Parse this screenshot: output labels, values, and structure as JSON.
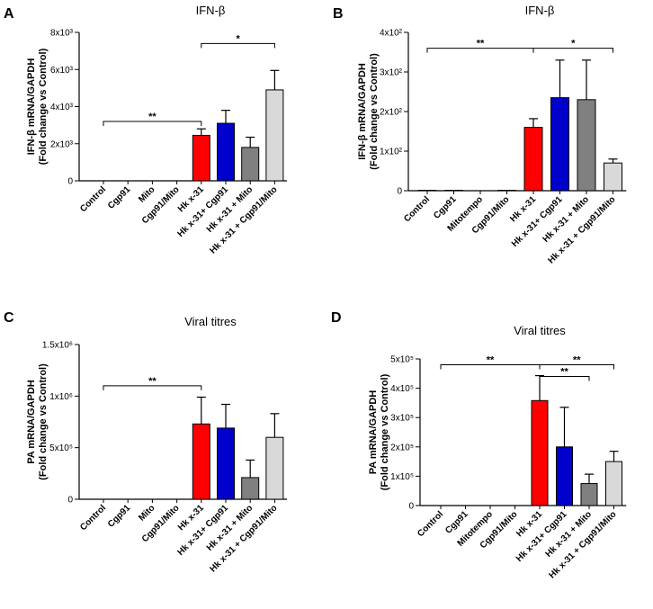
{
  "chart_data": [
    {
      "panel": "A",
      "type": "bar",
      "title": "IFN-β",
      "ylabel_line1": "IFN-β mRNA/GAPDH",
      "ylabel_line2": "(Fold change vs Control)",
      "ylim": [
        0,
        8000
      ],
      "ytick_values": [
        0,
        2000,
        4000,
        6000,
        8000
      ],
      "ytick_labels": [
        "0",
        "2x10³",
        "4x10³",
        "6x10³",
        "8x10³"
      ],
      "categories": [
        "Control",
        "Cgp91",
        "Mito",
        "Cgp91/Mito",
        "Hk x-31",
        "Hk x-31+ Cgp91",
        "Hk x-31 + Mito",
        "Hk x-31 + Cgp91/Mito"
      ],
      "values": [
        0,
        0,
        0,
        0,
        2450,
        3100,
        1800,
        4900
      ],
      "errors": [
        0,
        0,
        0,
        0,
        350,
        700,
        550,
        1050
      ],
      "colors": [
        "#ffffff",
        "#ffffff",
        "#ffffff",
        "#ffffff",
        "#ff0000",
        "#0000cc",
        "#808080",
        "#d9d9d9"
      ],
      "significance": [
        {
          "from": 0,
          "to": 4,
          "label": "**",
          "level": 3200
        },
        {
          "from": 4,
          "to": 7,
          "label": "*",
          "level": 7400
        }
      ]
    },
    {
      "panel": "B",
      "type": "bar",
      "title": "IFN-β",
      "ylabel_line1": "IFN-β mRNA/GAPDH",
      "ylabel_line2": "(Fold change vs Control)",
      "ylim": [
        0,
        400
      ],
      "ytick_values": [
        0,
        100,
        200,
        300,
        400
      ],
      "ytick_labels": [
        "0",
        "1x10²",
        "2x10²",
        "3x10²",
        "4x10²"
      ],
      "categories": [
        "Control",
        "Cgp91",
        "Mitotempo",
        "Cgp91/Mito",
        "Hk x-31",
        "Hk x-31+ Cgp91",
        "Hk x-31 + Mito",
        "Hk x-31 + Cgp91/Mito"
      ],
      "values": [
        1,
        1,
        0,
        1,
        160,
        235,
        230,
        70
      ],
      "errors": [
        0,
        0,
        0,
        0,
        22,
        95,
        100,
        10
      ],
      "colors": [
        "#ffffff",
        "#ffffff",
        "#ffffff",
        "#ffffff",
        "#ff0000",
        "#0000cc",
        "#808080",
        "#d9d9d9"
      ],
      "significance": [
        {
          "from": 0,
          "to": 4,
          "label": "**",
          "level": 360
        },
        {
          "from": 4,
          "to": 7,
          "label": "*",
          "level": 360
        }
      ]
    },
    {
      "panel": "C",
      "type": "bar",
      "title": "Viral titres",
      "ylabel_line1": "PA mRNA/GAPDH",
      "ylabel_line2": "(Fold change vs Control)",
      "ylim": [
        0,
        1500000
      ],
      "ytick_values": [
        0,
        500000,
        1000000,
        1500000
      ],
      "ytick_labels": [
        "0",
        "5x10⁵",
        "1x10⁶",
        "1.5x10⁶"
      ],
      "categories": [
        "Control",
        "Cgp91",
        "Mito",
        "Cgp91/Mito",
        "Hk x-31",
        "Hk x-31+ Cgp91",
        "Hk x-31 + Mito",
        "Hk x-31 + Cgp91/Mito"
      ],
      "values": [
        0,
        0,
        0,
        0,
        730000,
        690000,
        210000,
        600000
      ],
      "errors": [
        0,
        0,
        0,
        0,
        260000,
        230000,
        170000,
        230000
      ],
      "colors": [
        "#ffffff",
        "#ffffff",
        "#ffffff",
        "#ffffff",
        "#ff0000",
        "#0000cc",
        "#808080",
        "#d9d9d9"
      ],
      "significance": [
        {
          "from": 0,
          "to": 4,
          "label": "**",
          "level": 1100000
        }
      ]
    },
    {
      "panel": "D",
      "type": "bar",
      "title": "Viral titres",
      "ylabel_line1": "PA mRNA/GAPDH",
      "ylabel_line2": "(Fold change vs Control)",
      "ylim": [
        0,
        500000
      ],
      "ytick_values": [
        0,
        100000,
        200000,
        300000,
        400000,
        500000
      ],
      "ytick_labels": [
        "0",
        "1x10⁵",
        "2x10⁵",
        "3x10⁵",
        "4x10⁵",
        "5x10⁵"
      ],
      "categories": [
        "Control",
        "Cgp91",
        "Mitotempo",
        "Cgp91/Mito",
        "Hk x-31",
        "Hk x-31+ Cgp91",
        "Hk x-31 + Mito",
        "Hk x-31 + Cgp91/Mito"
      ],
      "values": [
        0,
        0,
        0,
        0,
        358000,
        200000,
        75000,
        150000
      ],
      "errors": [
        0,
        0,
        0,
        0,
        85000,
        135000,
        32000,
        35000
      ],
      "colors": [
        "#ffffff",
        "#ffffff",
        "#ffffff",
        "#ffffff",
        "#ff0000",
        "#0000cc",
        "#808080",
        "#d9d9d9"
      ],
      "significance": [
        {
          "from": 0,
          "to": 4,
          "label": "**",
          "level": 480000
        },
        {
          "from": 4,
          "to": 7,
          "label": "**",
          "level": 480000
        },
        {
          "from": 4,
          "to": 6,
          "label": "**",
          "level": 440000
        }
      ]
    }
  ]
}
